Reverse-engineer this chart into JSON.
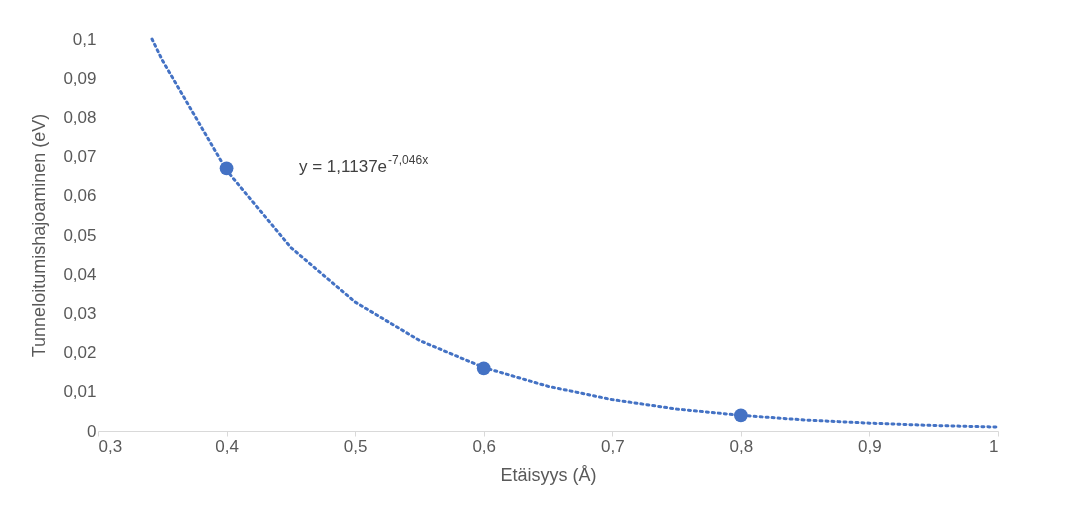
{
  "chart_data": {
    "type": "scatter",
    "xlabel": "Etäisyys (Å)",
    "ylabel": "Tunneloitumishajoaminen (eV)",
    "annotations": [
      "y = 1,1137e$^{-7,046x}$"
    ],
    "xlim": [
      0.3,
      1
    ],
    "xticks": [
      {
        "value": 0.3,
        "label": "0,3"
      },
      {
        "value": 0.4,
        "label": "0,4"
      },
      {
        "value": 0.5,
        "label": "0,5"
      },
      {
        "value": 0.6,
        "label": "0,6"
      },
      {
        "value": 0.7,
        "label": "0,7"
      },
      {
        "value": 0.8,
        "label": "0,8"
      },
      {
        "value": 0.9,
        "label": "0,9"
      },
      1
    ],
    "ylim": [
      0,
      0.1
    ],
    "yticks": [
      0,
      {
        "value": 0.01,
        "label": "0,01"
      },
      {
        "value": 0.02,
        "label": "0,02"
      },
      {
        "value": 0.03,
        "label": "0,03"
      },
      {
        "value": 0.04,
        "label": "0,04"
      },
      {
        "value": 0.05,
        "label": "0,05"
      },
      {
        "value": 0.06,
        "label": "0,06"
      },
      {
        "value": 0.07,
        "label": "0,07"
      },
      {
        "value": 0.08,
        "label": "0,08"
      },
      {
        "value": 0.09,
        "label": "0,09"
      },
      {
        "value": 0.1,
        "label": "0,1"
      }
    ],
    "grid": false,
    "series": [
      {
        "type": "line",
        "color": "#4472c4",
        "marker": "none",
        "line_style": "dotted",
        "x": [
          0.342,
          0.35,
          0.4,
          0.45,
          0.5,
          0.55,
          0.6,
          0.65,
          0.7,
          0.75,
          0.8,
          0.85,
          0.9,
          0.95,
          1.0
        ],
        "values": [
          0.1,
          0.0946,
          0.0665,
          0.0468,
          0.0329,
          0.0231,
          0.0162,
          0.0114,
          0.008,
          0.0056,
          0.004,
          0.0028,
          0.002,
          0.0014,
          0.001
        ]
      },
      {
        "color": "#4472c4",
        "marker": "circle",
        "x": [
          0.4,
          0.6,
          0.8
        ],
        "values": [
          0.067,
          0.016,
          0.004
        ]
      }
    ]
  }
}
